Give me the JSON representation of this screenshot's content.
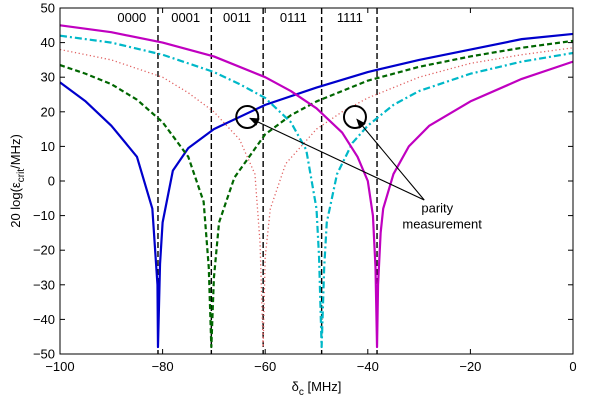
{
  "chart_data": {
    "type": "line",
    "title": "",
    "xlabel": {
      "main": "δ",
      "sub": "c",
      "rest": " [MHz]"
    },
    "ylabel": {
      "pre": "20 log(ε",
      "sub": "crit",
      "post": "/MHz)"
    },
    "xlim": [
      -100,
      0
    ],
    "ylim": [
      -50,
      50
    ],
    "xticks": [
      -100,
      -80,
      -60,
      -40,
      -20,
      0
    ],
    "yticks": [
      -50,
      -40,
      -30,
      -20,
      -10,
      0,
      10,
      20,
      30,
      40,
      50
    ],
    "xtick_labels": [
      "−100",
      "−80",
      "−60",
      "−40",
      "−20",
      "0"
    ],
    "ytick_labels": [
      "−50",
      "−40",
      "−30",
      "−20",
      "−10",
      "0",
      "10",
      "20",
      "30",
      "40",
      "50"
    ],
    "grid": false,
    "series": [
      {
        "key": "blue-solid",
        "color": "#0000cc",
        "style": "solid",
        "width": 2.2,
        "center": -80.9,
        "x": [
          -100,
          -95,
          -90,
          -85,
          -82,
          -81,
          -80.9,
          -80.5,
          -80,
          -78,
          -75,
          -70,
          -60,
          -50,
          -40,
          -30,
          -20,
          -10,
          0
        ],
        "y": [
          28.5,
          23,
          16,
          7,
          -8,
          -30,
          -48,
          -24,
          -12,
          3,
          9.5,
          15,
          22,
          27,
          31.5,
          35,
          38,
          41,
          42.5
        ]
      },
      {
        "key": "green-dashed",
        "color": "#006600",
        "style": "dashed",
        "width": 2.2,
        "center": -70.5,
        "x": [
          -100,
          -95,
          -90,
          -85,
          -80,
          -75,
          -72,
          -71,
          -70.5,
          -70,
          -69,
          -66,
          -60,
          -55,
          -50,
          -40,
          -30,
          -20,
          -10,
          0
        ],
        "y": [
          33.5,
          31,
          28,
          23.5,
          17,
          7,
          -6,
          -25,
          -48,
          -28,
          -12,
          1,
          13.5,
          19,
          23,
          29,
          33,
          36,
          38.5,
          40.5
        ]
      },
      {
        "key": "red-dotted",
        "color": "#e06060",
        "style": "dotted",
        "width": 1.3,
        "center": -60.4,
        "x": [
          -100,
          -90,
          -80,
          -75,
          -70,
          -65,
          -62,
          -61,
          -60.4,
          -60,
          -59,
          -56,
          -50,
          -45,
          -40,
          -30,
          -20,
          -10,
          0
        ],
        "y": [
          38,
          35,
          30,
          25.5,
          20,
          12,
          2,
          -18,
          -48,
          -22,
          -8,
          5,
          15,
          20,
          24,
          30,
          34,
          36.5,
          38.5
        ]
      },
      {
        "key": "cyan-dashdot",
        "color": "#00b8c8",
        "style": "dashdot",
        "width": 2.2,
        "center": -49,
        "x": [
          -100,
          -90,
          -80,
          -70,
          -65,
          -60,
          -55,
          -52,
          -50,
          -49.5,
          -49,
          -48.5,
          -48,
          -46,
          -43,
          -40,
          -35,
          -30,
          -20,
          -10,
          0
        ],
        "y": [
          42,
          40,
          36.5,
          31.5,
          28,
          24,
          17,
          9,
          -8,
          -22,
          -48,
          -25,
          -12,
          2,
          11,
          16,
          22,
          26,
          31,
          34.5,
          37
        ]
      },
      {
        "key": "magenta-solid",
        "color": "#c000c0",
        "style": "solid",
        "width": 2.2,
        "center": -38.2,
        "x": [
          -100,
          -90,
          -80,
          -70,
          -60,
          -55,
          -50,
          -45,
          -42,
          -40,
          -39,
          -38.5,
          -38.2,
          -38,
          -37.5,
          -37,
          -35,
          -32,
          -28,
          -20,
          -10,
          0
        ],
        "y": [
          45,
          43,
          40,
          36,
          30,
          26,
          21,
          14,
          7,
          0,
          -10,
          -25,
          -48,
          -30,
          -15,
          -8,
          2,
          10,
          16,
          23,
          29.5,
          34.5
        ]
      }
    ],
    "vlines": [
      -80.9,
      -70.5,
      -60.4,
      -49,
      -38.2
    ],
    "region_labels": [
      {
        "text": "0000",
        "x": -86
      },
      {
        "text": "0001",
        "x": -75.5
      },
      {
        "text": "0011",
        "x": -65.5
      },
      {
        "text": "0111",
        "x": -54.5
      },
      {
        "text": "1111",
        "x": -43.5
      }
    ],
    "annotation": {
      "lines": [
        "parity",
        "measurement"
      ],
      "text_x": -28,
      "text_y": -8,
      "arrow_from": [
        -29,
        -5.5
      ],
      "circles": [
        {
          "x": -63.5,
          "y": 18.5
        },
        {
          "x": -42.5,
          "y": 18.5
        }
      ]
    }
  }
}
